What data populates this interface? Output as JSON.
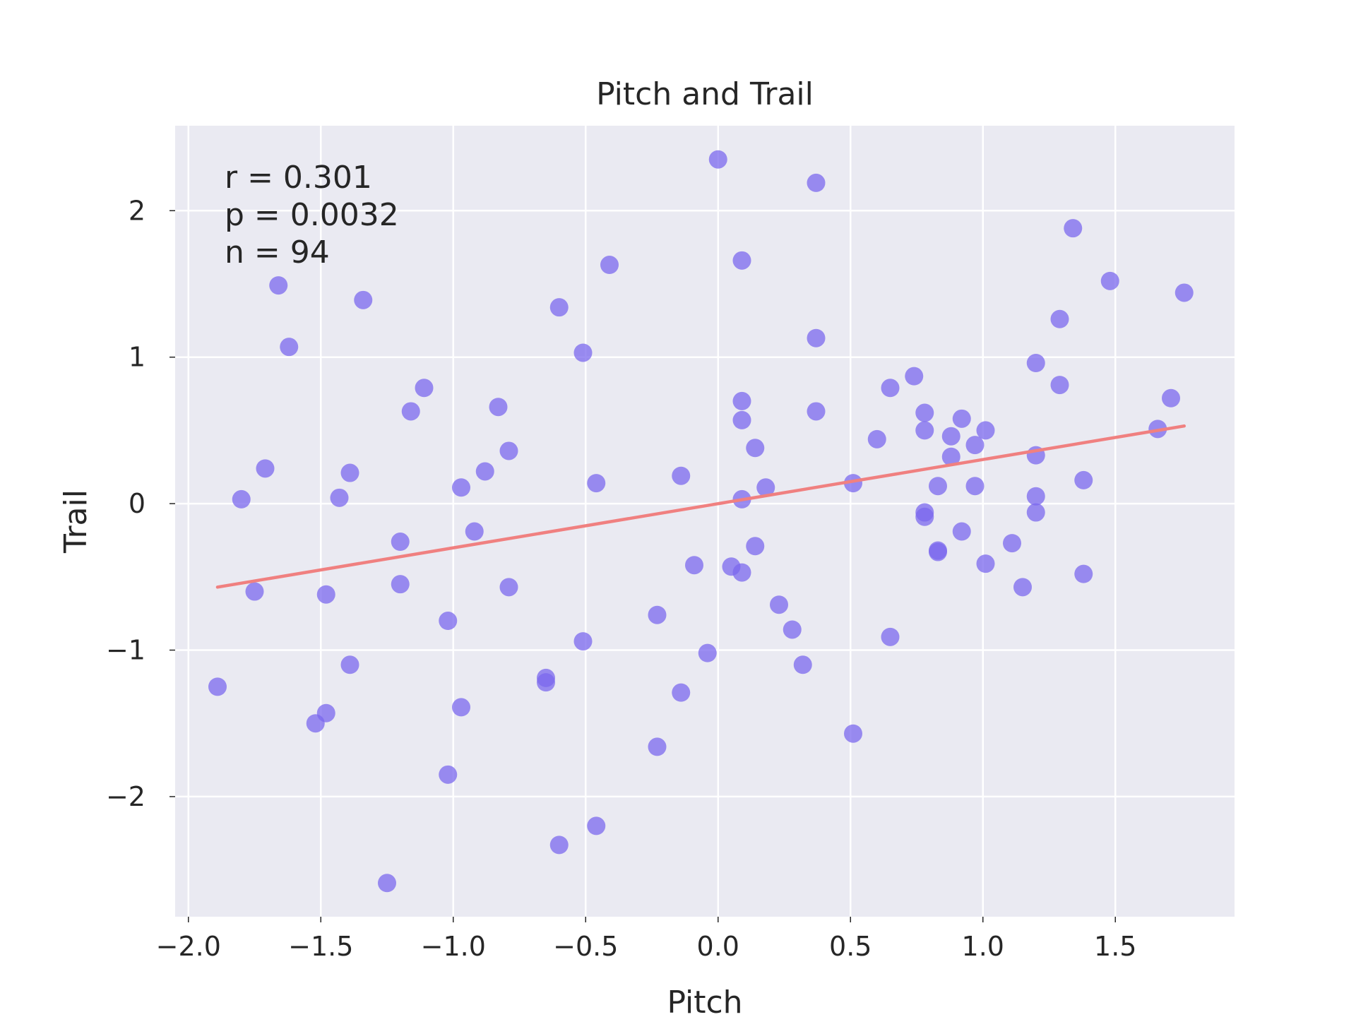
{
  "chart_data": {
    "type": "scatter",
    "title": "Pitch and Trail",
    "xlabel": "Pitch",
    "ylabel": "Trail",
    "xlim": [
      -2.05,
      1.95
    ],
    "ylim": [
      -2.82,
      2.58
    ],
    "xticks": [
      -2.0,
      -1.5,
      -1.0,
      -0.5,
      0.0,
      0.5,
      1.0,
      1.5
    ],
    "xtick_labels": [
      "−2.0",
      "−1.5",
      "−1.0",
      "−0.5",
      "0.0",
      "0.5",
      "1.0",
      "1.5"
    ],
    "yticks": [
      2,
      1,
      0,
      -1,
      -2
    ],
    "ytick_labels": [
      "2",
      "1",
      "0",
      "−1",
      "−2"
    ],
    "grid": true,
    "annotations": [
      "r = 0.301",
      "p = 0.0032",
      "n = 94"
    ],
    "point_color": "#7b68ee",
    "line_color": "#f08080",
    "background_color": "#eaeaf2",
    "points": [
      [
        0.0,
        2.35
      ],
      [
        0.37,
        2.19
      ],
      [
        1.34,
        1.88
      ],
      [
        0.09,
        1.66
      ],
      [
        -0.41,
        1.63
      ],
      [
        1.48,
        1.52
      ],
      [
        1.76,
        1.44
      ],
      [
        -1.66,
        1.49
      ],
      [
        -1.34,
        1.39
      ],
      [
        -0.6,
        1.34
      ],
      [
        1.29,
        1.26
      ],
      [
        0.37,
        1.13
      ],
      [
        -1.62,
        1.07
      ],
      [
        -0.51,
        1.03
      ],
      [
        1.2,
        0.96
      ],
      [
        0.74,
        0.87
      ],
      [
        1.29,
        0.81
      ],
      [
        -1.11,
        0.79
      ],
      [
        0.65,
        0.79
      ],
      [
        1.71,
        0.72
      ],
      [
        0.09,
        0.7
      ],
      [
        -0.83,
        0.66
      ],
      [
        -1.16,
        0.63
      ],
      [
        0.37,
        0.63
      ],
      [
        0.78,
        0.62
      ],
      [
        0.92,
        0.58
      ],
      [
        0.09,
        0.57
      ],
      [
        1.66,
        0.51
      ],
      [
        0.78,
        0.5
      ],
      [
        1.01,
        0.5
      ],
      [
        0.88,
        0.46
      ],
      [
        0.6,
        0.44
      ],
      [
        0.97,
        0.4
      ],
      [
        0.14,
        0.38
      ],
      [
        -0.79,
        0.36
      ],
      [
        1.2,
        0.33
      ],
      [
        0.88,
        0.32
      ],
      [
        -1.71,
        0.24
      ],
      [
        -0.88,
        0.22
      ],
      [
        -1.39,
        0.21
      ],
      [
        -0.14,
        0.19
      ],
      [
        1.38,
        0.16
      ],
      [
        -0.46,
        0.14
      ],
      [
        0.51,
        0.14
      ],
      [
        0.83,
        0.12
      ],
      [
        0.97,
        0.12
      ],
      [
        -0.97,
        0.11
      ],
      [
        0.18,
        0.11
      ],
      [
        1.2,
        0.05
      ],
      [
        -1.43,
        0.04
      ],
      [
        -1.8,
        0.03
      ],
      [
        0.09,
        0.03
      ],
      [
        0.78,
        -0.06
      ],
      [
        1.2,
        -0.06
      ],
      [
        0.78,
        -0.09
      ],
      [
        -0.92,
        -0.19
      ],
      [
        0.92,
        -0.19
      ],
      [
        -1.2,
        -0.26
      ],
      [
        1.11,
        -0.27
      ],
      [
        0.14,
        -0.29
      ],
      [
        0.83,
        -0.32
      ],
      [
        0.83,
        -0.33
      ],
      [
        1.01,
        -0.41
      ],
      [
        -0.09,
        -0.42
      ],
      [
        0.05,
        -0.43
      ],
      [
        0.09,
        -0.47
      ],
      [
        1.38,
        -0.48
      ],
      [
        -1.2,
        -0.55
      ],
      [
        -0.79,
        -0.57
      ],
      [
        1.15,
        -0.57
      ],
      [
        -1.75,
        -0.6
      ],
      [
        -1.48,
        -0.62
      ],
      [
        0.23,
        -0.69
      ],
      [
        -0.23,
        -0.76
      ],
      [
        -1.02,
        -0.8
      ],
      [
        0.28,
        -0.86
      ],
      [
        0.65,
        -0.91
      ],
      [
        -0.51,
        -0.94
      ],
      [
        -0.04,
        -1.02
      ],
      [
        -1.39,
        -1.1
      ],
      [
        0.32,
        -1.1
      ],
      [
        -0.65,
        -1.19
      ],
      [
        -0.65,
        -1.22
      ],
      [
        -1.89,
        -1.25
      ],
      [
        -0.14,
        -1.29
      ],
      [
        -0.97,
        -1.39
      ],
      [
        -1.48,
        -1.43
      ],
      [
        -1.52,
        -1.5
      ],
      [
        0.51,
        -1.57
      ],
      [
        -0.23,
        -1.66
      ],
      [
        -1.02,
        -1.85
      ],
      [
        -0.46,
        -2.2
      ],
      [
        -0.6,
        -2.33
      ],
      [
        -1.25,
        -2.59
      ]
    ],
    "regression_line": {
      "x": [
        -1.89,
        1.76
      ],
      "y": [
        -0.57,
        0.53
      ]
    }
  }
}
